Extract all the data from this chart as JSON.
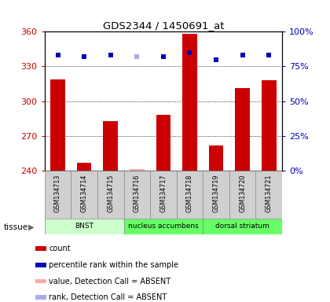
{
  "title": "GDS2344 / 1450691_at",
  "samples": [
    "GSM134713",
    "GSM134714",
    "GSM134715",
    "GSM134716",
    "GSM134717",
    "GSM134718",
    "GSM134719",
    "GSM134720",
    "GSM134721"
  ],
  "bar_values": [
    319,
    247,
    283,
    null,
    288,
    358,
    262,
    311,
    318
  ],
  "bar_absent_values": [
    null,
    null,
    null,
    241,
    null,
    null,
    null,
    null,
    null
  ],
  "rank_values": [
    83,
    82,
    83,
    null,
    82,
    85,
    80,
    83,
    83
  ],
  "rank_absent_values": [
    null,
    null,
    null,
    82,
    null,
    null,
    null,
    null,
    null
  ],
  "bar_color": "#cc0000",
  "bar_absent_color": "#ffaaaa",
  "rank_color": "#0000bb",
  "rank_absent_color": "#aaaaee",
  "ylim_left": [
    240,
    360
  ],
  "ylim_right": [
    0,
    100
  ],
  "yticks_left": [
    240,
    270,
    300,
    330,
    360
  ],
  "yticks_right": [
    0,
    25,
    50,
    75,
    100
  ],
  "ytick_labels_right": [
    "0%",
    "25%",
    "50%",
    "75%",
    "100%"
  ],
  "tissue_groups": [
    {
      "label": "BNST",
      "start": 0,
      "end": 3,
      "color": "#ccffcc"
    },
    {
      "label": "nucleus accumbens",
      "start": 3,
      "end": 6,
      "color": "#66ff66"
    },
    {
      "label": "dorsal striatum",
      "start": 6,
      "end": 9,
      "color": "#66ff66"
    }
  ],
  "legend_items": [
    {
      "label": "count",
      "color": "#cc0000"
    },
    {
      "label": "percentile rank within the sample",
      "color": "#0000bb"
    },
    {
      "label": "value, Detection Call = ABSENT",
      "color": "#ffaaaa"
    },
    {
      "label": "rank, Detection Call = ABSENT",
      "color": "#aaaaee"
    }
  ]
}
